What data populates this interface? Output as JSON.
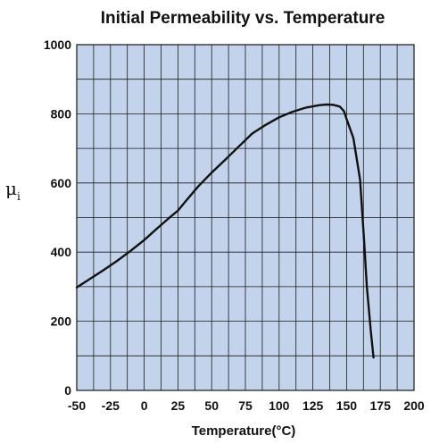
{
  "chart_data": {
    "type": "line",
    "title": "Initial Permeability vs. Temperature",
    "xlabel": "Temperature(°C)",
    "ylabel": "μ",
    "ylabel_subscript": "i",
    "xlim": [
      -50,
      200
    ],
    "ylim": [
      0,
      1000
    ],
    "x_ticks": [
      -50,
      -25,
      0,
      25,
      50,
      75,
      100,
      125,
      150,
      175,
      200
    ],
    "y_ticks": [
      0,
      200,
      400,
      600,
      800,
      1000
    ],
    "x_tick_labels": [
      "-50",
      "-25",
      "0",
      "25",
      "50",
      "75",
      "100",
      "125",
      "150",
      "175",
      "200"
    ],
    "y_tick_labels": [
      "0",
      "200",
      "400",
      "600",
      "800",
      "1000"
    ],
    "grid": true,
    "colors": {
      "plot_background": "#c3d3ec",
      "grid": "#1a1a1a",
      "line": "#111111"
    },
    "series": [
      {
        "x": [
          -50,
          -40,
          -30,
          -20,
          -10,
          0,
          10,
          20,
          25,
          30,
          40,
          50,
          60,
          70,
          80,
          90,
          100,
          110,
          120,
          130,
          135,
          140,
          145,
          148,
          150,
          155,
          160,
          163,
          165,
          168,
          170
        ],
        "y": [
          298,
          323,
          348,
          375,
          404,
          435,
          470,
          504,
          520,
          544,
          590,
          630,
          667,
          705,
          743,
          768,
          790,
          806,
          818,
          825,
          827,
          826,
          821,
          808,
          785,
          730,
          610,
          430,
          300,
          170,
          95
        ]
      }
    ]
  }
}
